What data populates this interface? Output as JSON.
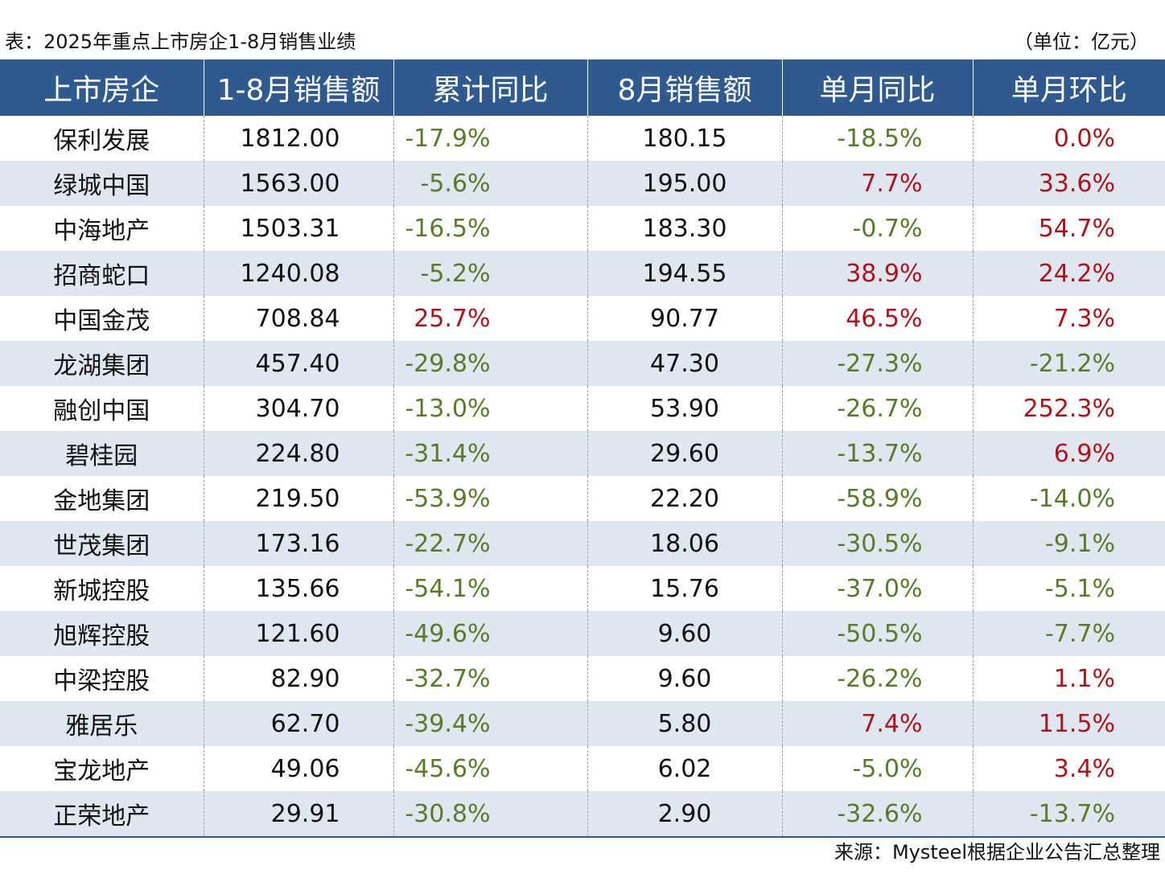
{
  "caption": {
    "title": "表：2025年重点上市房企1-8月销售业绩",
    "unit": "（单位：亿元）"
  },
  "headers": [
    "上市房企",
    "1-8月销售额",
    "累计同比",
    "8月销售额",
    "单月同比",
    "单月环比"
  ],
  "rows": [
    {
      "name": "保利发展",
      "ytd": "1812.00",
      "ytd_yoy": "-17.9%",
      "aug": "180.15",
      "mon_yoy": "-18.5%",
      "mon_mom": "0.0%"
    },
    {
      "name": "绿城中国",
      "ytd": "1563.00",
      "ytd_yoy": "-5.6%",
      "aug": "195.00",
      "mon_yoy": "7.7%",
      "mon_mom": "33.6%"
    },
    {
      "name": "中海地产",
      "ytd": "1503.31",
      "ytd_yoy": "-16.5%",
      "aug": "183.30",
      "mon_yoy": "-0.7%",
      "mon_mom": "54.7%"
    },
    {
      "name": "招商蛇口",
      "ytd": "1240.08",
      "ytd_yoy": "-5.2%",
      "aug": "194.55",
      "mon_yoy": "38.9%",
      "mon_mom": "24.2%"
    },
    {
      "name": "中国金茂",
      "ytd": "708.84",
      "ytd_yoy": "25.7%",
      "aug": "90.77",
      "mon_yoy": "46.5%",
      "mon_mom": "7.3%"
    },
    {
      "name": "龙湖集团",
      "ytd": "457.40",
      "ytd_yoy": "-29.8%",
      "aug": "47.30",
      "mon_yoy": "-27.3%",
      "mon_mom": "-21.2%"
    },
    {
      "name": "融创中国",
      "ytd": "304.70",
      "ytd_yoy": "-13.0%",
      "aug": "53.90",
      "mon_yoy": "-26.7%",
      "mon_mom": "252.3%"
    },
    {
      "name": "碧桂园",
      "ytd": "224.80",
      "ytd_yoy": "-31.4%",
      "aug": "29.60",
      "mon_yoy": "-13.7%",
      "mon_mom": "6.9%"
    },
    {
      "name": "金地集团",
      "ytd": "219.50",
      "ytd_yoy": "-53.9%",
      "aug": "22.20",
      "mon_yoy": "-58.9%",
      "mon_mom": "-14.0%"
    },
    {
      "name": "世茂集团",
      "ytd": "173.16",
      "ytd_yoy": "-22.7%",
      "aug": "18.06",
      "mon_yoy": "-30.5%",
      "mon_mom": "-9.1%"
    },
    {
      "name": "新城控股",
      "ytd": "135.66",
      "ytd_yoy": "-54.1%",
      "aug": "15.76",
      "mon_yoy": "-37.0%",
      "mon_mom": "-5.1%"
    },
    {
      "name": "旭辉控股",
      "ytd": "121.60",
      "ytd_yoy": "-49.6%",
      "aug": "9.60",
      "mon_yoy": "-50.5%",
      "mon_mom": "-7.7%"
    },
    {
      "name": "中梁控股",
      "ytd": "82.90",
      "ytd_yoy": "-32.7%",
      "aug": "9.60",
      "mon_yoy": "-26.2%",
      "mon_mom": "1.1%"
    },
    {
      "name": "雅居乐",
      "ytd": "62.70",
      "ytd_yoy": "-39.4%",
      "aug": "5.80",
      "mon_yoy": "7.4%",
      "mon_mom": "11.5%"
    },
    {
      "name": "宝龙地产",
      "ytd": "49.06",
      "ytd_yoy": "-45.6%",
      "aug": "6.02",
      "mon_yoy": "-5.0%",
      "mon_mom": "3.4%"
    },
    {
      "name": "正荣地产",
      "ytd": "29.91",
      "ytd_yoy": "-30.8%",
      "aug": "2.90",
      "mon_yoy": "-32.6%",
      "mon_mom": "-13.7%"
    }
  ],
  "source": "来源：Mysteel根据企业公告汇总整理",
  "colors": {
    "header_bg": "#2f5a8f",
    "alt_row_bg": "#dfe7f1",
    "negative": "#5a7a2a",
    "positive": "#b0121b"
  }
}
